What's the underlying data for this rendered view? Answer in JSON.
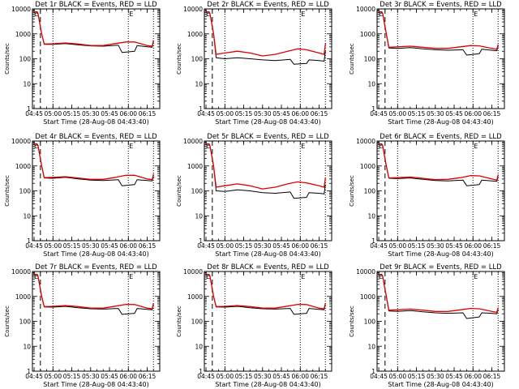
{
  "colors": {
    "events": "#000000",
    "lld": "#e00000",
    "background": "#ffffff",
    "axis": "#000000"
  },
  "common": {
    "xlabel": "Start Time (28-Aug-08 04:43:40)",
    "ylabel": "Counts/sec",
    "xlim": [
      "04:43:40",
      "06:25"
    ],
    "ylim": [
      1,
      10000
    ],
    "yscale": "log",
    "y_ticks": [
      "1",
      "10",
      "100",
      "1000",
      "10000"
    ],
    "x_ticks": [
      "04:45",
      "05:00",
      "05:15",
      "05:30",
      "05:45",
      "06:00",
      "06:15"
    ],
    "vertical_dashed_line_at": "04:50",
    "vertical_dotted_lines_at": [
      "05:00",
      "06:00",
      "06:20"
    ],
    "corner_marks": [
      "E",
      "E"
    ]
  },
  "chart_data": [
    {
      "type": "line",
      "title": "Det 1r BLACK = Events, RED = LLD",
      "series": [
        {
          "name": "Events",
          "color": "#000000",
          "x": [
            "04:45",
            "04:48",
            "04:51",
            "04:53",
            "05:00",
            "05:10",
            "05:20",
            "05:30",
            "05:40",
            "05:52",
            "05:55",
            "06:05",
            "06:07",
            "06:15",
            "06:19",
            "06:20"
          ],
          "values": [
            8000,
            7000,
            1000,
            380,
            380,
            410,
            360,
            330,
            320,
            350,
            180,
            200,
            340,
            300,
            290,
            500
          ]
        },
        {
          "name": "LLD",
          "color": "#e00000",
          "x": [
            "04:45",
            "04:48",
            "04:51",
            "04:53",
            "05:00",
            "05:10",
            "05:20",
            "05:30",
            "05:40",
            "05:50",
            "05:58",
            "06:05",
            "06:15",
            "06:19",
            "06:20"
          ],
          "values": [
            8000,
            7000,
            1000,
            390,
            400,
            430,
            390,
            340,
            340,
            410,
            470,
            470,
            340,
            320,
            550
          ]
        }
      ]
    },
    {
      "type": "line",
      "title": "Det 2r BLACK = Events, RED = LLD",
      "series": [
        {
          "name": "Events",
          "color": "#000000",
          "x": [
            "04:45",
            "04:48",
            "04:51",
            "04:53",
            "05:00",
            "05:10",
            "05:20",
            "05:30",
            "05:40",
            "05:52",
            "05:55",
            "06:05",
            "06:07",
            "06:15",
            "06:19",
            "06:20"
          ],
          "values": [
            8000,
            7000,
            1000,
            110,
            100,
            110,
            100,
            90,
            85,
            95,
            60,
            65,
            90,
            85,
            80,
            200
          ]
        },
        {
          "name": "LLD",
          "color": "#e00000",
          "x": [
            "04:45",
            "04:48",
            "04:51",
            "04:53",
            "05:00",
            "05:10",
            "05:20",
            "05:30",
            "05:40",
            "05:50",
            "05:58",
            "06:05",
            "06:15",
            "06:19",
            "06:20"
          ],
          "values": [
            8000,
            7000,
            1000,
            150,
            170,
            200,
            170,
            130,
            150,
            200,
            250,
            230,
            170,
            150,
            400
          ]
        }
      ]
    },
    {
      "type": "line",
      "title": "Det 3r BLACK = Events, RED = LLD",
      "series": [
        {
          "name": "Events",
          "color": "#000000",
          "x": [
            "04:45",
            "04:48",
            "04:51",
            "04:53",
            "05:00",
            "05:10",
            "05:20",
            "05:30",
            "05:40",
            "05:52",
            "05:55",
            "06:05",
            "06:07",
            "06:15",
            "06:19",
            "06:20"
          ],
          "values": [
            8000,
            7000,
            1000,
            270,
            260,
            280,
            250,
            230,
            220,
            230,
            140,
            160,
            240,
            220,
            210,
            320
          ]
        },
        {
          "name": "LLD",
          "color": "#e00000",
          "x": [
            "04:45",
            "04:48",
            "04:51",
            "04:53",
            "05:00",
            "05:10",
            "05:20",
            "05:30",
            "05:40",
            "05:50",
            "05:58",
            "06:05",
            "06:15",
            "06:19",
            "06:20"
          ],
          "values": [
            8000,
            7000,
            1000,
            290,
            300,
            320,
            290,
            260,
            260,
            300,
            340,
            330,
            260,
            240,
            380
          ]
        }
      ]
    },
    {
      "type": "line",
      "title": "Det 4r BLACK = Events, RED = LLD",
      "series": [
        {
          "name": "Events",
          "color": "#000000",
          "x": [
            "04:45",
            "04:48",
            "04:51",
            "04:53",
            "05:00",
            "05:10",
            "05:20",
            "05:30",
            "05:40",
            "05:52",
            "05:55",
            "06:05",
            "06:07",
            "06:15",
            "06:19",
            "06:20"
          ],
          "values": [
            8000,
            7000,
            1000,
            330,
            320,
            350,
            300,
            270,
            260,
            280,
            160,
            180,
            280,
            260,
            250,
            400
          ]
        },
        {
          "name": "LLD",
          "color": "#e00000",
          "x": [
            "04:45",
            "04:48",
            "04:51",
            "04:53",
            "05:00",
            "05:10",
            "05:20",
            "05:30",
            "05:40",
            "05:50",
            "05:58",
            "06:05",
            "06:15",
            "06:19",
            "06:20"
          ],
          "values": [
            8000,
            7000,
            1000,
            340,
            350,
            370,
            330,
            290,
            290,
            350,
            420,
            420,
            300,
            280,
            480
          ]
        }
      ]
    },
    {
      "type": "line",
      "title": "Det 5r BLACK = Events, RED = LLD",
      "series": [
        {
          "name": "Events",
          "color": "#000000",
          "x": [
            "04:45",
            "04:48",
            "04:51",
            "04:53",
            "05:00",
            "05:10",
            "05:20",
            "05:30",
            "05:40",
            "05:52",
            "05:55",
            "06:05",
            "06:07",
            "06:15",
            "06:19",
            "06:20"
          ],
          "values": [
            8000,
            7000,
            1000,
            100,
            95,
            110,
            100,
            85,
            80,
            90,
            50,
            55,
            85,
            80,
            75,
            180
          ]
        },
        {
          "name": "LLD",
          "color": "#e00000",
          "x": [
            "04:45",
            "04:48",
            "04:51",
            "04:53",
            "05:00",
            "05:10",
            "05:20",
            "05:30",
            "05:40",
            "05:50",
            "05:58",
            "06:05",
            "06:15",
            "06:19",
            "06:20"
          ],
          "values": [
            8000,
            7000,
            1000,
            140,
            160,
            190,
            160,
            120,
            140,
            190,
            230,
            210,
            160,
            140,
            330
          ]
        }
      ]
    },
    {
      "type": "line",
      "title": "Det 6r BLACK = Events, RED = LLD",
      "series": [
        {
          "name": "Events",
          "color": "#000000",
          "x": [
            "04:45",
            "04:48",
            "04:51",
            "04:53",
            "05:00",
            "05:10",
            "05:20",
            "05:30",
            "05:40",
            "05:52",
            "05:55",
            "06:05",
            "06:07",
            "06:15",
            "06:19",
            "06:20"
          ],
          "values": [
            8000,
            7000,
            1000,
            320,
            310,
            330,
            290,
            260,
            250,
            270,
            160,
            180,
            270,
            250,
            240,
            380
          ]
        },
        {
          "name": "LLD",
          "color": "#e00000",
          "x": [
            "04:45",
            "04:48",
            "04:51",
            "04:53",
            "05:00",
            "05:10",
            "05:20",
            "05:30",
            "05:40",
            "05:50",
            "05:58",
            "06:05",
            "06:15",
            "06:19",
            "06:20"
          ],
          "values": [
            8000,
            7000,
            1000,
            330,
            340,
            360,
            320,
            280,
            290,
            340,
            410,
            400,
            300,
            270,
            450
          ]
        }
      ]
    },
    {
      "type": "line",
      "title": "Det 7r BLACK = Events, RED = LLD",
      "series": [
        {
          "name": "Events",
          "color": "#000000",
          "x": [
            "04:45",
            "04:48",
            "04:51",
            "04:53",
            "05:00",
            "05:10",
            "05:20",
            "05:30",
            "05:40",
            "05:52",
            "05:55",
            "06:05",
            "06:07",
            "06:15",
            "06:19",
            "06:20"
          ],
          "values": [
            8000,
            7000,
            1000,
            380,
            370,
            400,
            350,
            320,
            310,
            330,
            190,
            210,
            330,
            300,
            290,
            480
          ]
        },
        {
          "name": "LLD",
          "color": "#e00000",
          "x": [
            "04:45",
            "04:48",
            "04:51",
            "04:53",
            "05:00",
            "05:10",
            "05:20",
            "05:30",
            "05:40",
            "05:50",
            "05:58",
            "06:05",
            "06:15",
            "06:19",
            "06:20"
          ],
          "values": [
            8000,
            7000,
            1000,
            390,
            400,
            430,
            390,
            340,
            340,
            410,
            480,
            470,
            340,
            320,
            540
          ]
        }
      ]
    },
    {
      "type": "line",
      "title": "Det 8r BLACK = Events, RED = LLD",
      "series": [
        {
          "name": "Events",
          "color": "#000000",
          "x": [
            "04:45",
            "04:48",
            "04:51",
            "04:53",
            "05:00",
            "05:10",
            "05:20",
            "05:30",
            "05:40",
            "05:52",
            "05:55",
            "06:05",
            "06:07",
            "06:15",
            "06:19",
            "06:20"
          ],
          "values": [
            8000,
            7000,
            1000,
            380,
            370,
            400,
            350,
            320,
            310,
            330,
            190,
            210,
            330,
            300,
            290,
            480
          ]
        },
        {
          "name": "LLD",
          "color": "#e00000",
          "x": [
            "04:45",
            "04:48",
            "04:51",
            "04:53",
            "05:00",
            "05:10",
            "05:20",
            "05:30",
            "05:40",
            "05:50",
            "05:58",
            "06:05",
            "06:15",
            "06:19",
            "06:20"
          ],
          "values": [
            8000,
            7000,
            1000,
            390,
            400,
            430,
            390,
            340,
            340,
            410,
            480,
            470,
            340,
            320,
            540
          ]
        }
      ]
    },
    {
      "type": "line",
      "title": "Det 9r BLACK = Events, RED = LLD",
      "series": [
        {
          "name": "Events",
          "color": "#000000",
          "x": [
            "04:45",
            "04:48",
            "04:51",
            "04:53",
            "05:00",
            "05:10",
            "05:20",
            "05:30",
            "05:40",
            "05:52",
            "05:55",
            "06:05",
            "06:07",
            "06:15",
            "06:19",
            "06:20"
          ],
          "values": [
            8000,
            7000,
            1000,
            260,
            250,
            270,
            240,
            220,
            210,
            220,
            130,
            150,
            220,
            210,
            200,
            300
          ]
        },
        {
          "name": "LLD",
          "color": "#e00000",
          "x": [
            "04:45",
            "04:48",
            "04:51",
            "04:53",
            "05:00",
            "05:10",
            "05:20",
            "05:30",
            "05:40",
            "05:50",
            "05:58",
            "06:05",
            "06:15",
            "06:19",
            "06:20"
          ],
          "values": [
            8000,
            7000,
            1000,
            280,
            290,
            310,
            280,
            250,
            250,
            290,
            330,
            320,
            250,
            230,
            360
          ]
        }
      ]
    }
  ]
}
